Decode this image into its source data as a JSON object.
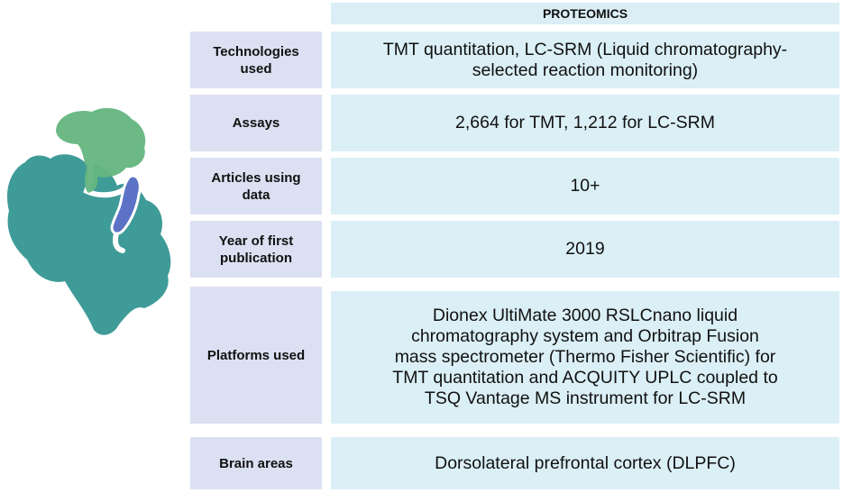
{
  "header": "PROTEOMICS",
  "rows": [
    {
      "label": "Technologies used",
      "value": "TMT quantitation, LC-SRM (Liquid chromatography-\nselected reaction monitoring)"
    },
    {
      "label": "Assays",
      "value": "2,664 for TMT, 1,212 for LC-SRM"
    },
    {
      "label": "Articles using data",
      "value": "10+"
    },
    {
      "label": "Year of first publication",
      "value": "2019"
    },
    {
      "label": "Platforms used",
      "value": "Dionex  UltiMate 3000 RSLCnano liquid\nchromatography system and  Orbitrap Fusion\nmass spectrometer  (Thermo Fisher Scientific) for\nTMT quantitation and  ACQUITY UPLC coupled to\nTSQ Vantage MS instrument for LC-SRM"
    },
    {
      "label": "Brain areas",
      "value": "Dorsolateral prefrontal cortex (DLPFC)"
    }
  ],
  "colors": {
    "header_bg": "#dbeef5",
    "label_bg": "#dbe1f2",
    "value_bg": "#dbeff6",
    "brain_teal": "#3e9b98",
    "brain_green": "#64b57f",
    "brain_blue": "#5b72c6"
  },
  "icons": [
    "brain-sagittal-illustration"
  ]
}
